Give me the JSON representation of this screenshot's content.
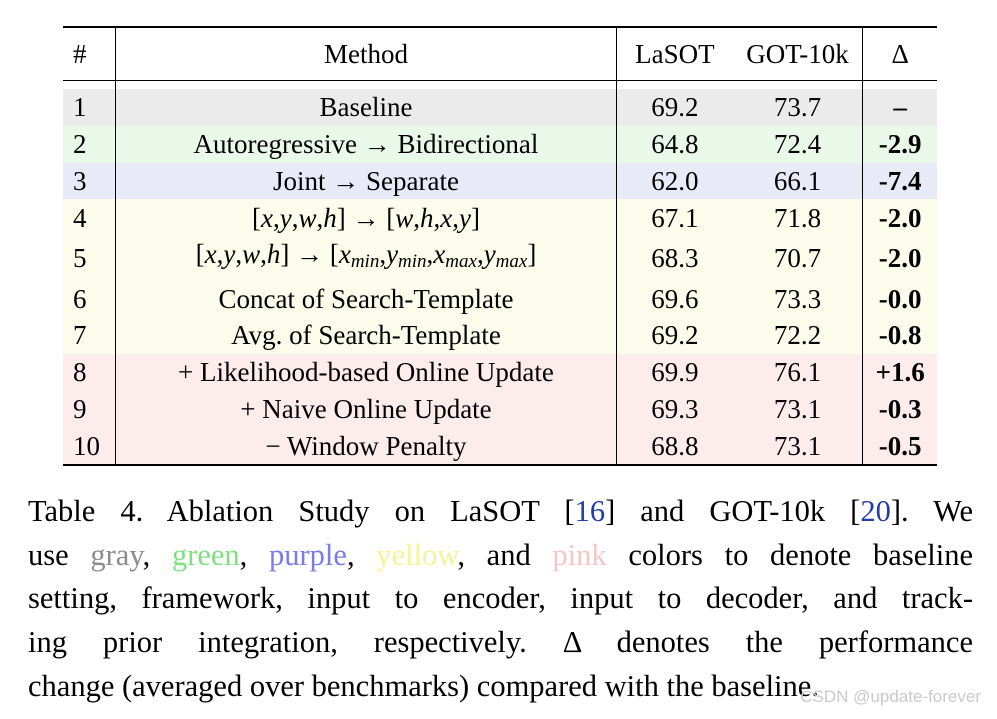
{
  "table": {
    "headers": {
      "num": "#",
      "method": "Method",
      "lasot": "LaSOT",
      "got": "GOT-10k",
      "delta": "Δ"
    },
    "colors": {
      "gray": "#ebebeb",
      "green": "#e9f8e9",
      "purple": "#e9eaf8",
      "yellow": "#fcfcec",
      "pink": "#fcecec"
    },
    "rows": [
      {
        "num": "1",
        "method": "Baseline",
        "lasot": "69.2",
        "got": "73.7",
        "delta": "–",
        "group": "gray"
      },
      {
        "num": "2",
        "method": "Autoregressive → Bidirectional",
        "lasot": "64.8",
        "got": "72.4",
        "delta": "-2.9",
        "group": "green"
      },
      {
        "num": "3",
        "method": "Joint → Separate",
        "lasot": "62.0",
        "got": "66.1",
        "delta": "-7.4",
        "group": "purple"
      },
      {
        "num": "4",
        "method": "[x,y,w,h] → [w,h,x,y]",
        "lasot": "67.1",
        "got": "71.8",
        "delta": "-2.0",
        "group": "yellow"
      },
      {
        "num": "5",
        "method": "[x,y,w,h] → [x_min,y_min,x_max,y_max]",
        "lasot": "68.3",
        "got": "70.7",
        "delta": "-2.0",
        "group": "yellow"
      },
      {
        "num": "6",
        "method": "Concat of Search-Template",
        "lasot": "69.6",
        "got": "73.3",
        "delta": "-0.0",
        "group": "yellow"
      },
      {
        "num": "7",
        "method": "Avg. of Search-Template",
        "lasot": "69.2",
        "got": "72.2",
        "delta": "-0.8",
        "group": "yellow"
      },
      {
        "num": "8",
        "method": "+ Likelihood-based Online Update",
        "lasot": "69.9",
        "got": "76.1",
        "delta": "+1.6",
        "group": "pink"
      },
      {
        "num": "9",
        "method": "+ Naive Online Update",
        "lasot": "69.3",
        "got": "73.1",
        "delta": "-0.3",
        "group": "pink"
      },
      {
        "num": "10",
        "method": "− Window Penalty",
        "lasot": "68.8",
        "got": "73.1",
        "delta": "-0.5",
        "group": "pink"
      }
    ]
  },
  "caption": {
    "lines": [
      [
        "Table 4.  Ablation Study on LaSOT [",
        "16",
        "] and GOT-10k [",
        "20",
        "].  We"
      ],
      [
        "use ",
        "gray",
        ", ",
        "green",
        ", ",
        "purple",
        ", ",
        "yellow",
        ", and ",
        "pink",
        " colors to denote baseline"
      ],
      [
        "setting, framework, input to encoder, input to decoder, and track-"
      ],
      [
        "ing prior integration, respectively.  Δ denotes the performance"
      ],
      [
        "change (averaged over benchmarks) compared with the baseline."
      ]
    ],
    "word_colors": {
      "gray": "#8c8c8c",
      "green": "#7fe07f",
      "purple": "#7b7bf0",
      "yellow": "#f4f496",
      "pink": "#f5c6c6"
    }
  },
  "watermark": "CSDN @update-forever"
}
